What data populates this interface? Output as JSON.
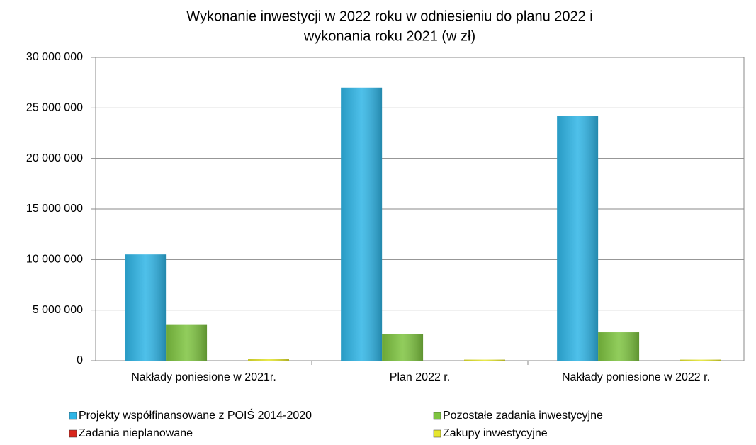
{
  "chart_data": {
    "type": "bar",
    "title": [
      "Wykonanie inwestycji w 2022 roku w odniesieniu do planu 2022 i",
      "wykonania roku 2021 (w zł)"
    ],
    "categories": [
      "Nakłady poniesione w 2021r.",
      "Plan 2022 r.",
      "Nakłady poniesione w 2022 r."
    ],
    "series": [
      {
        "name": "Projekty współfinansowane z POIŚ 2014-2020",
        "color": "#2fb5e6",
        "values": [
          10500000,
          27000000,
          24200000
        ]
      },
      {
        "name": "Pozostałe zadania inwestycyjne",
        "color": "#7ec440",
        "values": [
          3600000,
          2600000,
          2800000
        ]
      },
      {
        "name": "Zadania nieplanowane",
        "color": "#d9261c",
        "values": [
          0,
          0,
          0
        ]
      },
      {
        "name": "Zakupy inwestycyjne",
        "color": "#e6e62e",
        "values": [
          200000,
          100000,
          100000
        ]
      }
    ],
    "ylim": [
      0,
      30000000
    ],
    "yticks": [
      0,
      {
        "value": 5000000,
        "label": "5 000 000"
      },
      {
        "value": 10000000,
        "label": "10 000 000"
      },
      {
        "value": 15000000,
        "label": "15 000 000"
      },
      {
        "value": 20000000,
        "label": "20 000 000"
      },
      {
        "value": 25000000,
        "label": "25 000 000"
      },
      {
        "value": 30000000,
        "label": "30 000 000"
      }
    ],
    "grid": true,
    "legend": "bottom"
  }
}
